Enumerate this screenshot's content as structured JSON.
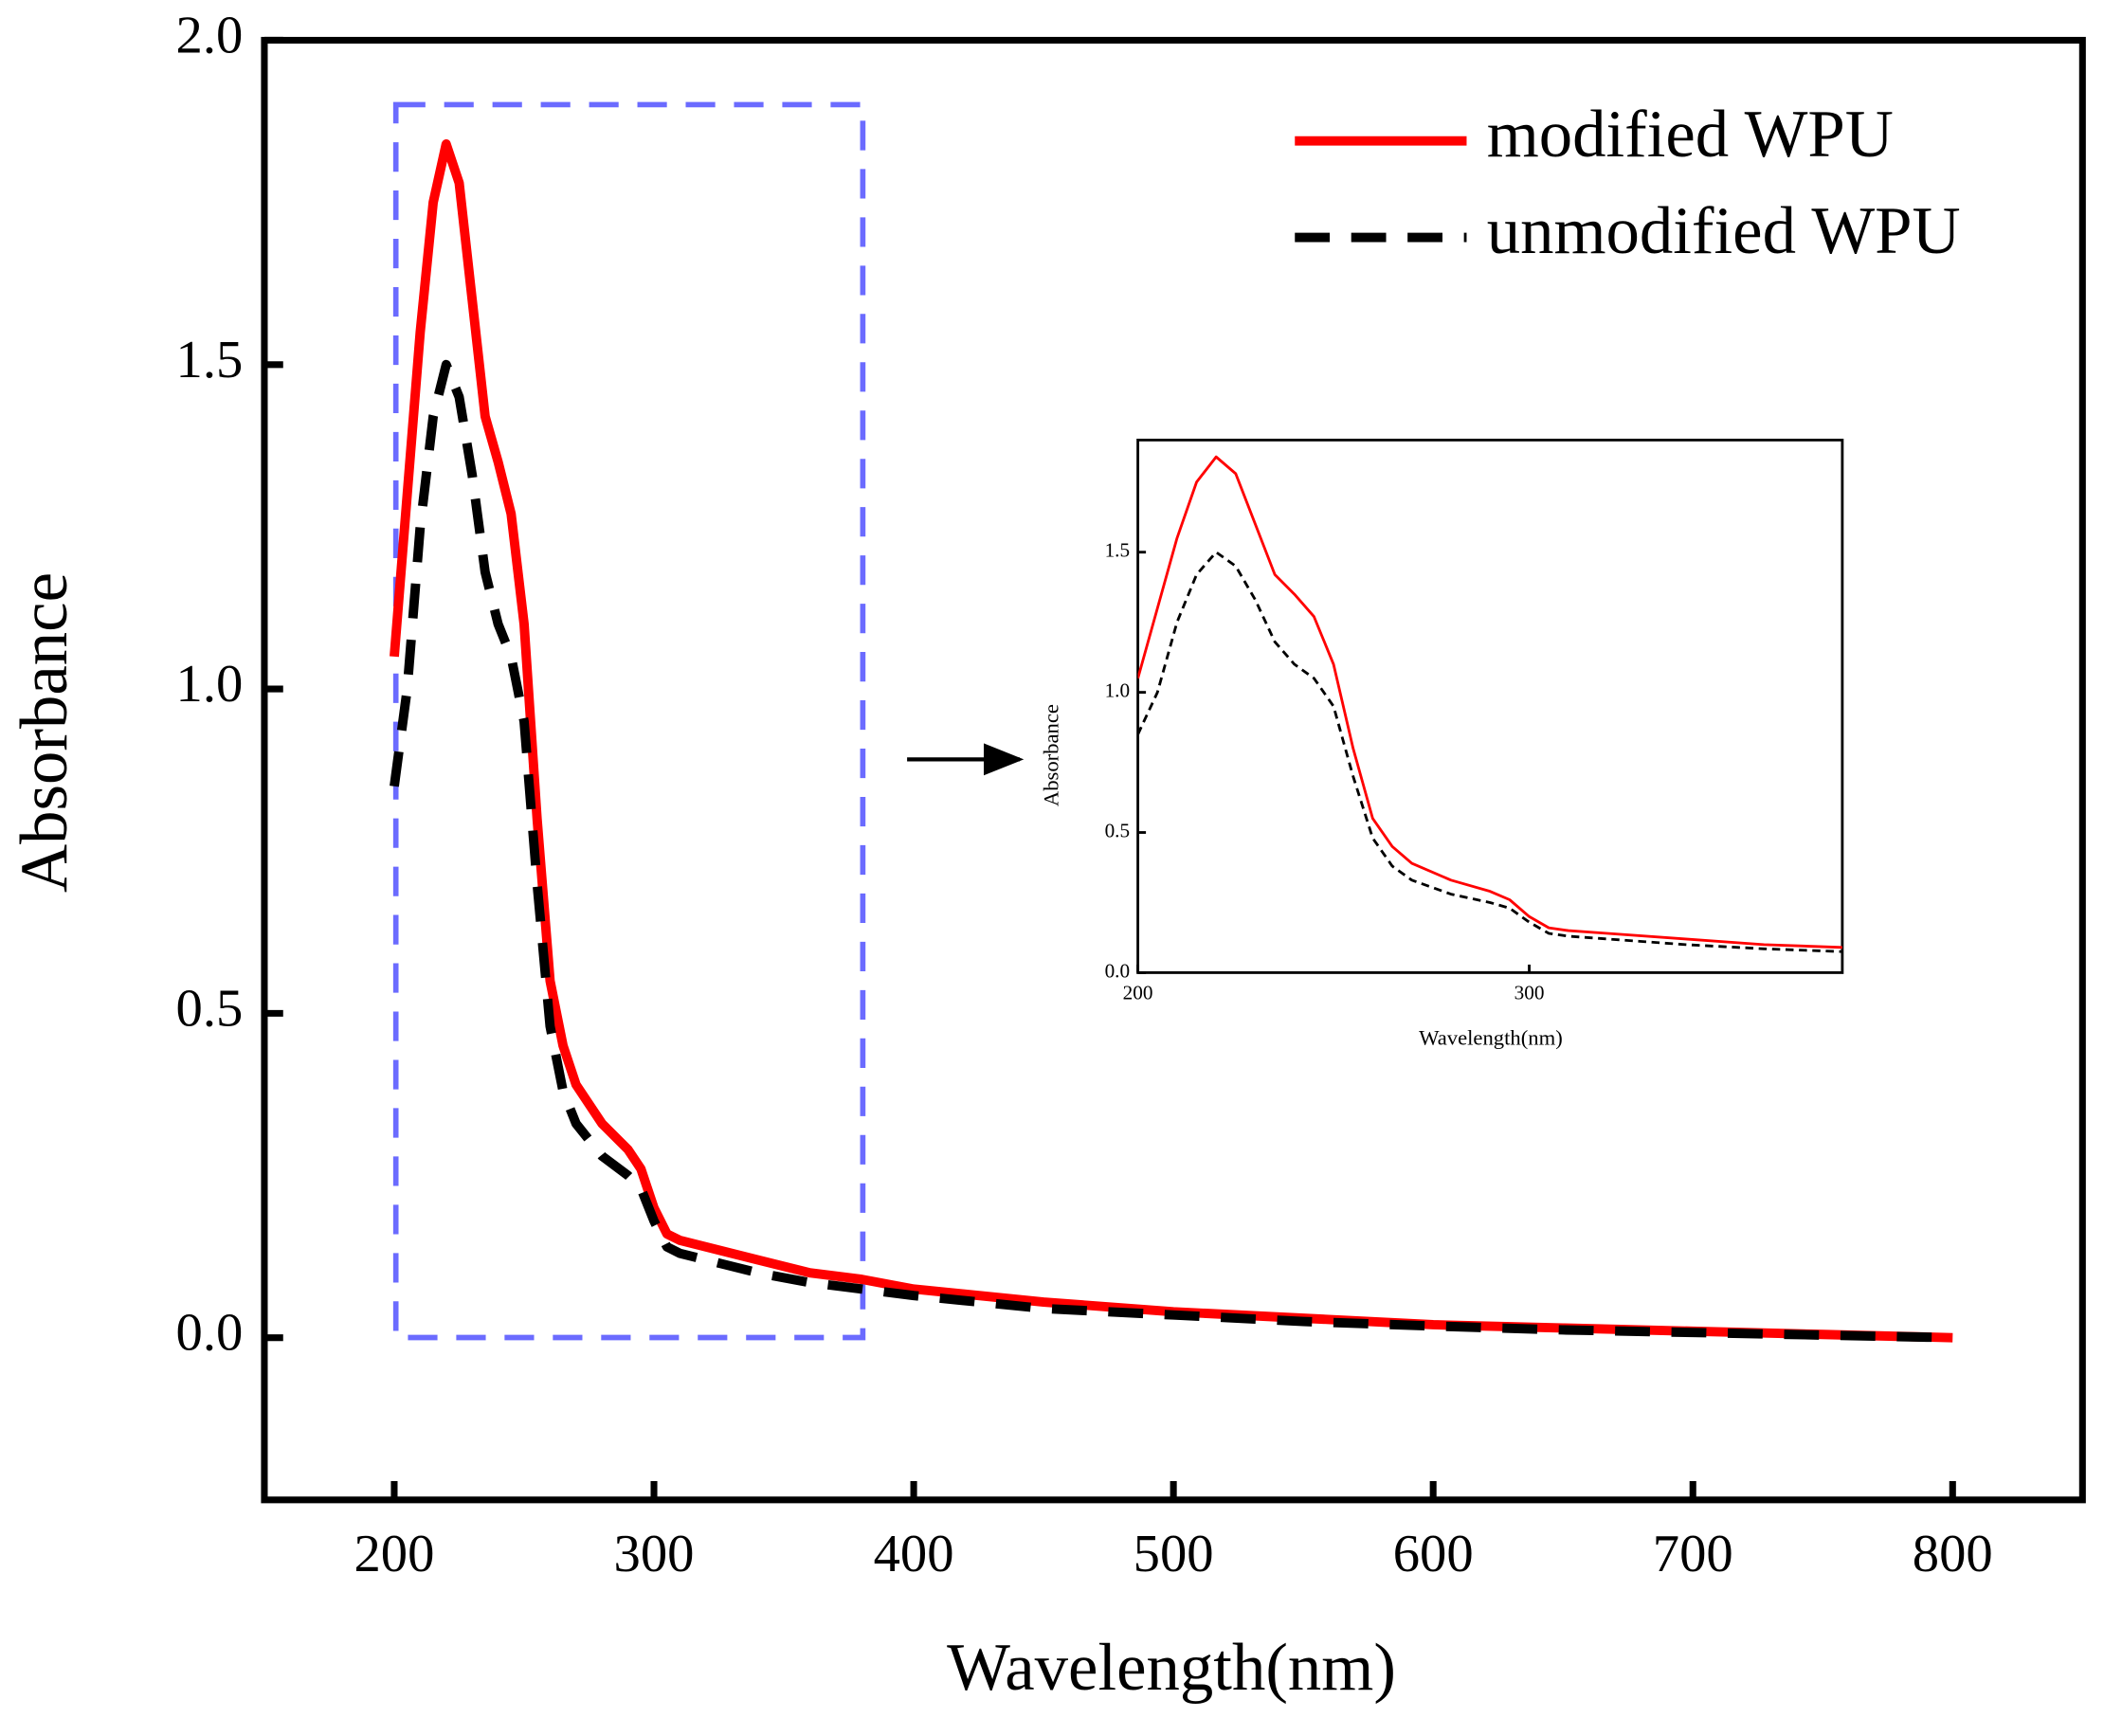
{
  "chart_data": {
    "type": "line",
    "xlabel": "Wavelength(nm)",
    "ylabel": "Absorbance",
    "x": [
      200,
      205,
      210,
      215,
      220,
      225,
      230,
      235,
      240,
      245,
      250,
      255,
      260,
      265,
      270,
      280,
      290,
      295,
      300,
      305,
      310,
      320,
      340,
      360,
      380,
      400,
      450,
      500,
      550,
      600,
      650,
      700,
      750,
      800
    ],
    "series": [
      {
        "name": "modified WPU",
        "color": "#ff0000",
        "dash": "solid",
        "values": [
          1.05,
          1.3,
          1.55,
          1.75,
          1.84,
          1.78,
          1.6,
          1.42,
          1.35,
          1.27,
          1.1,
          0.8,
          0.55,
          0.45,
          0.39,
          0.33,
          0.29,
          0.26,
          0.2,
          0.16,
          0.15,
          0.14,
          0.12,
          0.1,
          0.09,
          0.075,
          0.055,
          0.04,
          0.03,
          0.02,
          0.015,
          0.01,
          0.005,
          0
        ]
      },
      {
        "name": "unmodified WPU",
        "color": "#000000",
        "dash": "dashed",
        "values": [
          0.85,
          1.0,
          1.25,
          1.42,
          1.5,
          1.45,
          1.33,
          1.18,
          1.1,
          1.05,
          0.95,
          0.7,
          0.48,
          0.38,
          0.33,
          0.28,
          0.25,
          0.23,
          0.18,
          0.14,
          0.13,
          0.12,
          0.1,
          0.085,
          0.075,
          0.065,
          0.045,
          0.035,
          0.025,
          0.018,
          0.012,
          0.008,
          0.004,
          0
        ]
      }
    ],
    "xlim": [
      150,
      850
    ],
    "ylim": [
      -0.25,
      2.0
    ],
    "xticks": [
      200,
      300,
      400,
      500,
      600,
      700,
      800
    ],
    "yticks": [
      {
        "value": 0,
        "label": "0.0"
      },
      {
        "value": 0.5,
        "label": "0.5"
      },
      {
        "value": 1,
        "label": "1.0"
      },
      {
        "value": 1.5,
        "label": "1.5"
      },
      {
        "value": 2,
        "label": "2.0"
      }
    ],
    "legend": "upper right",
    "inset": {
      "xlabel": "Wavelength(nm)",
      "ylabel": "Absorbance",
      "xlim": [
        200,
        380
      ],
      "ylim": [
        0,
        1.9
      ],
      "xticks": [
        200,
        300
      ],
      "yticks": [
        {
          "value": 0,
          "label": "0.0"
        },
        {
          "value": 0.5,
          "label": "0.5"
        },
        {
          "value": 1,
          "label": "1.0"
        },
        {
          "value": 1.5,
          "label": "1.5"
        }
      ]
    }
  }
}
